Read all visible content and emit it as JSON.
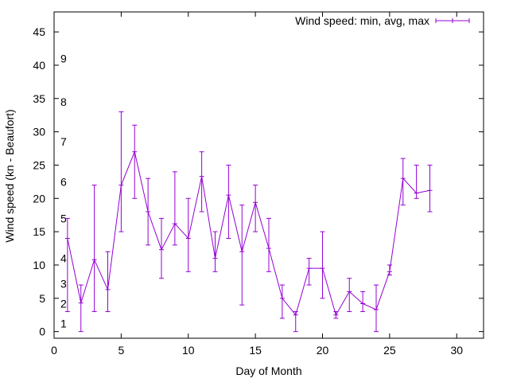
{
  "chart_data": {
    "type": "line",
    "title": "",
    "xlabel": "Day of Month",
    "ylabel": "Wind speed (kn - Beaufort)",
    "xlim": [
      0,
      32
    ],
    "ylim": [
      -1,
      48
    ],
    "xticks": [
      0,
      5,
      10,
      15,
      20,
      25,
      30
    ],
    "yticks": [
      0,
      5,
      10,
      15,
      20,
      25,
      30,
      35,
      40,
      45
    ],
    "grid": false,
    "legend_position": "top-right",
    "color": "#9400d3",
    "beaufort_labels": [
      {
        "label": "1",
        "y": 1.2
      },
      {
        "label": "2",
        "y": 4.2
      },
      {
        "label": "3",
        "y": 7.2
      },
      {
        "label": "4",
        "y": 11
      },
      {
        "label": "5",
        "y": 17
      },
      {
        "label": "6",
        "y": 22.5
      },
      {
        "label": "7",
        "y": 28.5
      },
      {
        "label": "8",
        "y": 34.5
      },
      {
        "label": "9",
        "y": 41
      }
    ],
    "series": [
      {
        "name": "Wind speed: min, avg, max",
        "points": [
          {
            "x": 1,
            "avg": 14,
            "min": 3,
            "max": 17
          },
          {
            "x": 2,
            "avg": 4.3,
            "min": 0,
            "max": 7
          },
          {
            "x": 3,
            "avg": 10.8,
            "min": 3,
            "max": 22
          },
          {
            "x": 4,
            "avg": 6.3,
            "min": 3,
            "max": 12
          },
          {
            "x": 5,
            "avg": 22,
            "min": 15,
            "max": 33
          },
          {
            "x": 6,
            "avg": 27,
            "min": 20,
            "max": 31
          },
          {
            "x": 7,
            "avg": 18,
            "min": 13,
            "max": 23
          },
          {
            "x": 8,
            "avg": 12.3,
            "min": 8,
            "max": 17
          },
          {
            "x": 9,
            "avg": 16.2,
            "min": 13,
            "max": 24
          },
          {
            "x": 10,
            "avg": 14,
            "min": 9,
            "max": 20
          },
          {
            "x": 11,
            "avg": 23.3,
            "min": 18,
            "max": 27
          },
          {
            "x": 12,
            "avg": 11,
            "min": 9,
            "max": 15
          },
          {
            "x": 13,
            "avg": 20.5,
            "min": 14,
            "max": 25
          },
          {
            "x": 14,
            "avg": 12,
            "min": 4,
            "max": 19
          },
          {
            "x": 15,
            "avg": 19.4,
            "min": 15,
            "max": 22
          },
          {
            "x": 16,
            "avg": 12.5,
            "min": 9,
            "max": 17
          },
          {
            "x": 17,
            "avg": 5,
            "min": 2,
            "max": 7
          },
          {
            "x": 18,
            "avg": 2.5,
            "min": 0,
            "max": 3
          },
          {
            "x": 19,
            "avg": 9.5,
            "min": 7,
            "max": 11
          },
          {
            "x": 20,
            "avg": 9.5,
            "min": 5,
            "max": 15
          },
          {
            "x": 21,
            "avg": 2.5,
            "min": 2,
            "max": 3
          },
          {
            "x": 22,
            "avg": 6,
            "min": 3,
            "max": 8
          },
          {
            "x": 23,
            "avg": 4.2,
            "min": 3,
            "max": 6
          },
          {
            "x": 24,
            "avg": 3.3,
            "min": 0,
            "max": 7
          },
          {
            "x": 25,
            "avg": 9,
            "min": 8.5,
            "max": 10
          },
          {
            "x": 26,
            "avg": 23,
            "min": 19,
            "max": 26
          },
          {
            "x": 27,
            "avg": 20.8,
            "min": 20,
            "max": 25
          },
          {
            "x": 28,
            "avg": 21.2,
            "min": 18,
            "max": 25
          }
        ]
      }
    ]
  }
}
